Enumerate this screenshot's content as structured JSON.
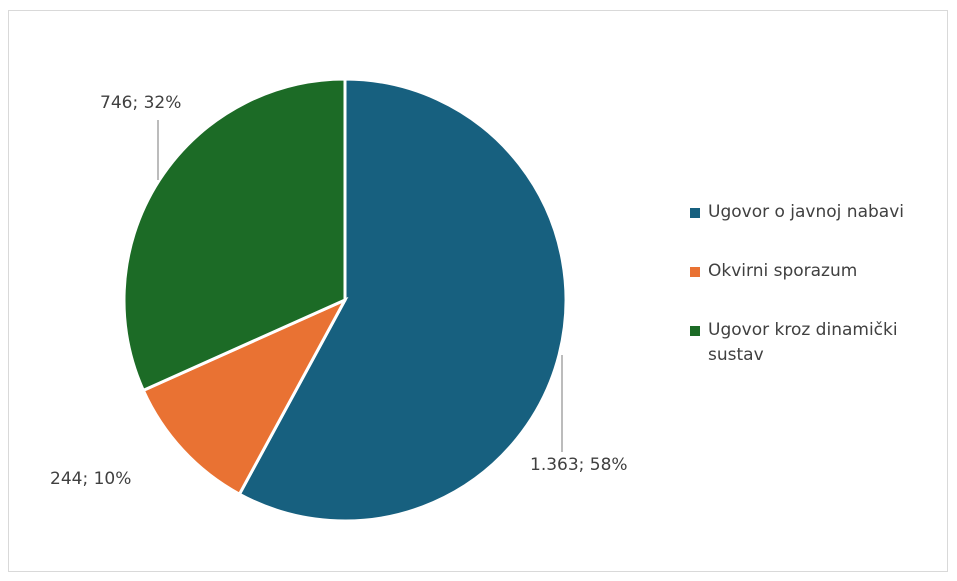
{
  "chart_data": {
    "type": "pie",
    "title": "",
    "slices": [
      {
        "name": "Ugovor o javnoj nabavi",
        "value": 1363,
        "percent": 58,
        "label": "1.363; 58%",
        "color": "#17607f"
      },
      {
        "name": "Okvirni sporazum",
        "value": 244,
        "percent": 10,
        "label": "244; 10%",
        "color": "#e97233"
      },
      {
        "name": "Ugovor kroz dinamički sustav",
        "value": 746,
        "percent": 32,
        "label": "746; 32%",
        "color": "#1c6b26"
      }
    ],
    "legend_position": "right"
  }
}
